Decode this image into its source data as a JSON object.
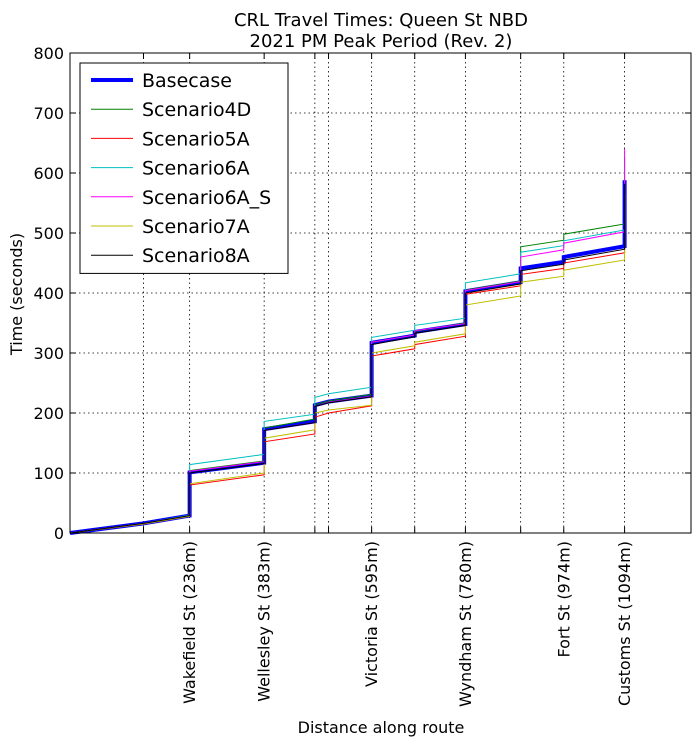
{
  "chart_data": {
    "type": "line",
    "title": "CRL Travel Times: Queen St NBD",
    "subtitle": "2021 PM Peak Period (Rev. 2)",
    "xlabel": "Distance along route",
    "ylabel": "Time (seconds)",
    "xlim": [
      0,
      1225
    ],
    "ylim": [
      0,
      800
    ],
    "yticks": [
      0,
      100,
      200,
      300,
      400,
      500,
      600,
      700,
      800
    ],
    "grid": true,
    "legend_position": "upper-left",
    "stops": [
      {
        "label": "",
        "x": 145
      },
      {
        "label": "Wakefield St (236m)",
        "x": 236
      },
      {
        "label": "Wellesley St (383m)",
        "x": 383
      },
      {
        "label": "",
        "x": 483
      },
      {
        "label": "",
        "x": 510
      },
      {
        "label": "Victoria St (595m)",
        "x": 595
      },
      {
        "label": "",
        "x": 680
      },
      {
        "label": "Wyndham St (780m)",
        "x": 780
      },
      {
        "label": "",
        "x": 889
      },
      {
        "label": "Fort St (974m)",
        "x": 974
      },
      {
        "label": "Customs St (1094m)",
        "x": 1094
      }
    ],
    "series": [
      {
        "name": "Basecase",
        "color": "#0000ff",
        "width": 4,
        "x": [
          0,
          145,
          236,
          236,
          383,
          383,
          483,
          483,
          510,
          595,
          595,
          680,
          680,
          780,
          780,
          889,
          889,
          974,
          974,
          1094,
          1094
        ],
        "y": [
          0,
          16,
          29,
          101,
          117,
          173,
          186,
          213,
          219,
          229,
          317,
          329,
          335,
          348,
          403,
          418,
          441,
          452,
          460,
          478,
          588
        ]
      },
      {
        "name": "Scenario4D",
        "color": "#008000",
        "width": 1,
        "x": [
          0,
          145,
          236,
          236,
          383,
          383,
          483,
          483,
          510,
          595,
          595,
          680,
          680,
          780,
          780,
          889,
          889,
          974,
          974,
          1094,
          1094
        ],
        "y": [
          0,
          16,
          29,
          104,
          120,
          175,
          190,
          214,
          220,
          231,
          318,
          330,
          336,
          350,
          405,
          420,
          477,
          488,
          498,
          515,
          625
        ]
      },
      {
        "name": "Scenario5A",
        "color": "#ff0000",
        "width": 1,
        "x": [
          0,
          145,
          236,
          236,
          383,
          383,
          483,
          483,
          510,
          595,
          595,
          680,
          680,
          780,
          780,
          889,
          889,
          974,
          974,
          1094,
          1094
        ],
        "y": [
          0,
          15,
          28,
          80,
          97,
          152,
          165,
          193,
          200,
          212,
          295,
          307,
          314,
          328,
          398,
          412,
          431,
          441,
          450,
          467,
          577
        ]
      },
      {
        "name": "Scenario6A",
        "color": "#00bfbf",
        "width": 1,
        "x": [
          0,
          145,
          236,
          236,
          383,
          383,
          483,
          483,
          510,
          595,
          595,
          680,
          680,
          780,
          780,
          889,
          889,
          974,
          974,
          1094,
          1094
        ],
        "y": [
          0,
          16,
          30,
          114,
          131,
          186,
          198,
          226,
          232,
          243,
          326,
          338,
          346,
          358,
          417,
          432,
          468,
          479,
          487,
          505,
          615
        ]
      },
      {
        "name": "Scenario6A_S",
        "color": "#ff00ff",
        "width": 1,
        "x": [
          0,
          145,
          236,
          236,
          383,
          383,
          483,
          483,
          510,
          595,
          595,
          680,
          680,
          780,
          780,
          889,
          889,
          974,
          974,
          1094,
          1094
        ],
        "y": [
          0,
          16,
          29,
          103,
          119,
          171,
          184,
          211,
          218,
          228,
          318,
          330,
          337,
          349,
          404,
          419,
          460,
          472,
          483,
          502,
          640
        ]
      },
      {
        "name": "Scenario7A",
        "color": "#bfbf00",
        "width": 1,
        "x": [
          0,
          145,
          236,
          236,
          383,
          383,
          483,
          483,
          510,
          595,
          595,
          680,
          680,
          780,
          780,
          889,
          889,
          974,
          974,
          1094,
          1094
        ],
        "y": [
          0,
          15,
          28,
          82,
          100,
          158,
          172,
          200,
          205,
          213,
          300,
          312,
          318,
          332,
          380,
          395,
          418,
          428,
          438,
          455,
          565
        ]
      },
      {
        "name": "Scenario8A",
        "color": "#000000",
        "width": 1,
        "x": [
          0,
          145,
          236,
          236,
          383,
          383,
          483,
          483,
          510,
          595,
          595,
          680,
          680,
          780,
          780,
          889,
          889,
          974,
          974,
          1094,
          1094
        ],
        "y": [
          0,
          16,
          29,
          100,
          116,
          171,
          184,
          211,
          217,
          227,
          314,
          327,
          333,
          346,
          400,
          415,
          437,
          448,
          455,
          473,
          582
        ]
      }
    ]
  }
}
